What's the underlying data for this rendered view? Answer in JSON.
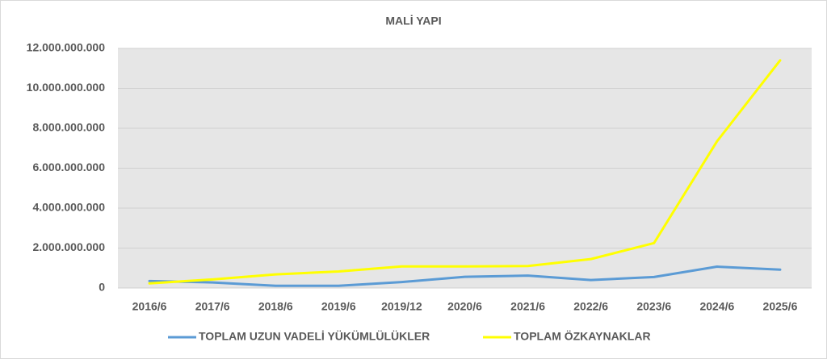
{
  "chart_data": {
    "type": "line",
    "title": "MALİ YAPI",
    "categories": [
      "2016/6",
      "2017/6",
      "2018/6",
      "2019/6",
      "2019/12",
      "2020/6",
      "2021/6",
      "2022/6",
      "2023/6",
      "2024/6",
      "2025/6"
    ],
    "series": [
      {
        "name": "TOPLAM UZUN VADELİ YÜKÜMLÜLÜKLER",
        "color": "#5b9bd5",
        "values": [
          350000000,
          280000000,
          110000000,
          110000000,
          300000000,
          560000000,
          620000000,
          400000000,
          550000000,
          1070000000,
          920000000
        ]
      },
      {
        "name": "TOPLAM ÖZKAYNAKLAR",
        "color": "#ffff00",
        "values": [
          230000000,
          430000000,
          680000000,
          830000000,
          1080000000,
          1080000000,
          1100000000,
          1450000000,
          2250000000,
          7350000000,
          11400000000
        ]
      }
    ],
    "ylim": [
      0,
      12000000000
    ],
    "yticks": [
      0,
      {
        "value": 2000000000,
        "label": "2.000.000.000"
      },
      {
        "value": 4000000000,
        "label": "4.000.000.000"
      },
      {
        "value": 6000000000,
        "label": "6.000.000.000"
      },
      {
        "value": 8000000000,
        "label": "8.000.000.000"
      },
      {
        "value": 10000000000,
        "label": "10.000.000.000"
      },
      {
        "value": 12000000000,
        "label": "12.000.000.000"
      }
    ],
    "grid": true
  }
}
